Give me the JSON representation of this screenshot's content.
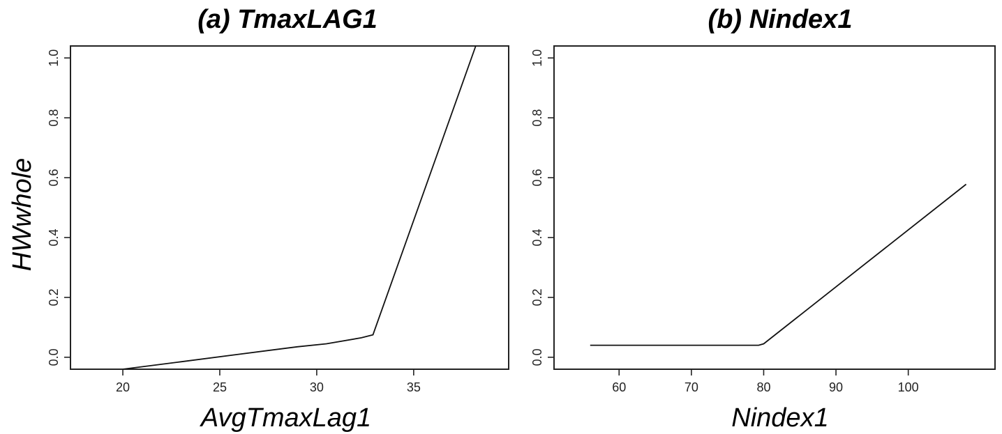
{
  "figure": {
    "ylabel": "HWwhole"
  },
  "chart_data": [
    {
      "type": "line",
      "title": "(a) TmaxLAG1",
      "xlabel": "AvgTmaxLag1",
      "ylabel": "HWwhole",
      "xlim": [
        17.3,
        39.9
      ],
      "ylim": [
        -0.04,
        1.04
      ],
      "xticks": [
        "20",
        "25",
        "30",
        "35"
      ],
      "yticks": [
        "0.0",
        "0.2",
        "0.4",
        "0.6",
        "0.8",
        "1.0"
      ],
      "grid": false,
      "series": [
        {
          "x": [
            20.0,
            23.0,
            26.0,
            29.0,
            30.5,
            32.3,
            32.9,
            38.2
          ],
          "y": [
            -0.04,
            -0.015,
            0.01,
            0.035,
            0.045,
            0.065,
            0.075,
            1.04
          ]
        }
      ]
    },
    {
      "type": "line",
      "title": "(b) Nindex1",
      "xlabel": "Nindex1",
      "ylabel": "",
      "xlim": [
        51.0,
        112.0
      ],
      "ylim": [
        -0.04,
        1.04
      ],
      "xticks": [
        "60",
        "70",
        "80",
        "90",
        "100"
      ],
      "yticks": [
        "0.0",
        "0.2",
        "0.4",
        "0.6",
        "0.8",
        "1.0"
      ],
      "grid": false,
      "series": [
        {
          "x": [
            56.0,
            79.3,
            80.0,
            108.0
          ],
          "y": [
            0.04,
            0.04,
            0.045,
            0.578
          ]
        }
      ]
    }
  ]
}
